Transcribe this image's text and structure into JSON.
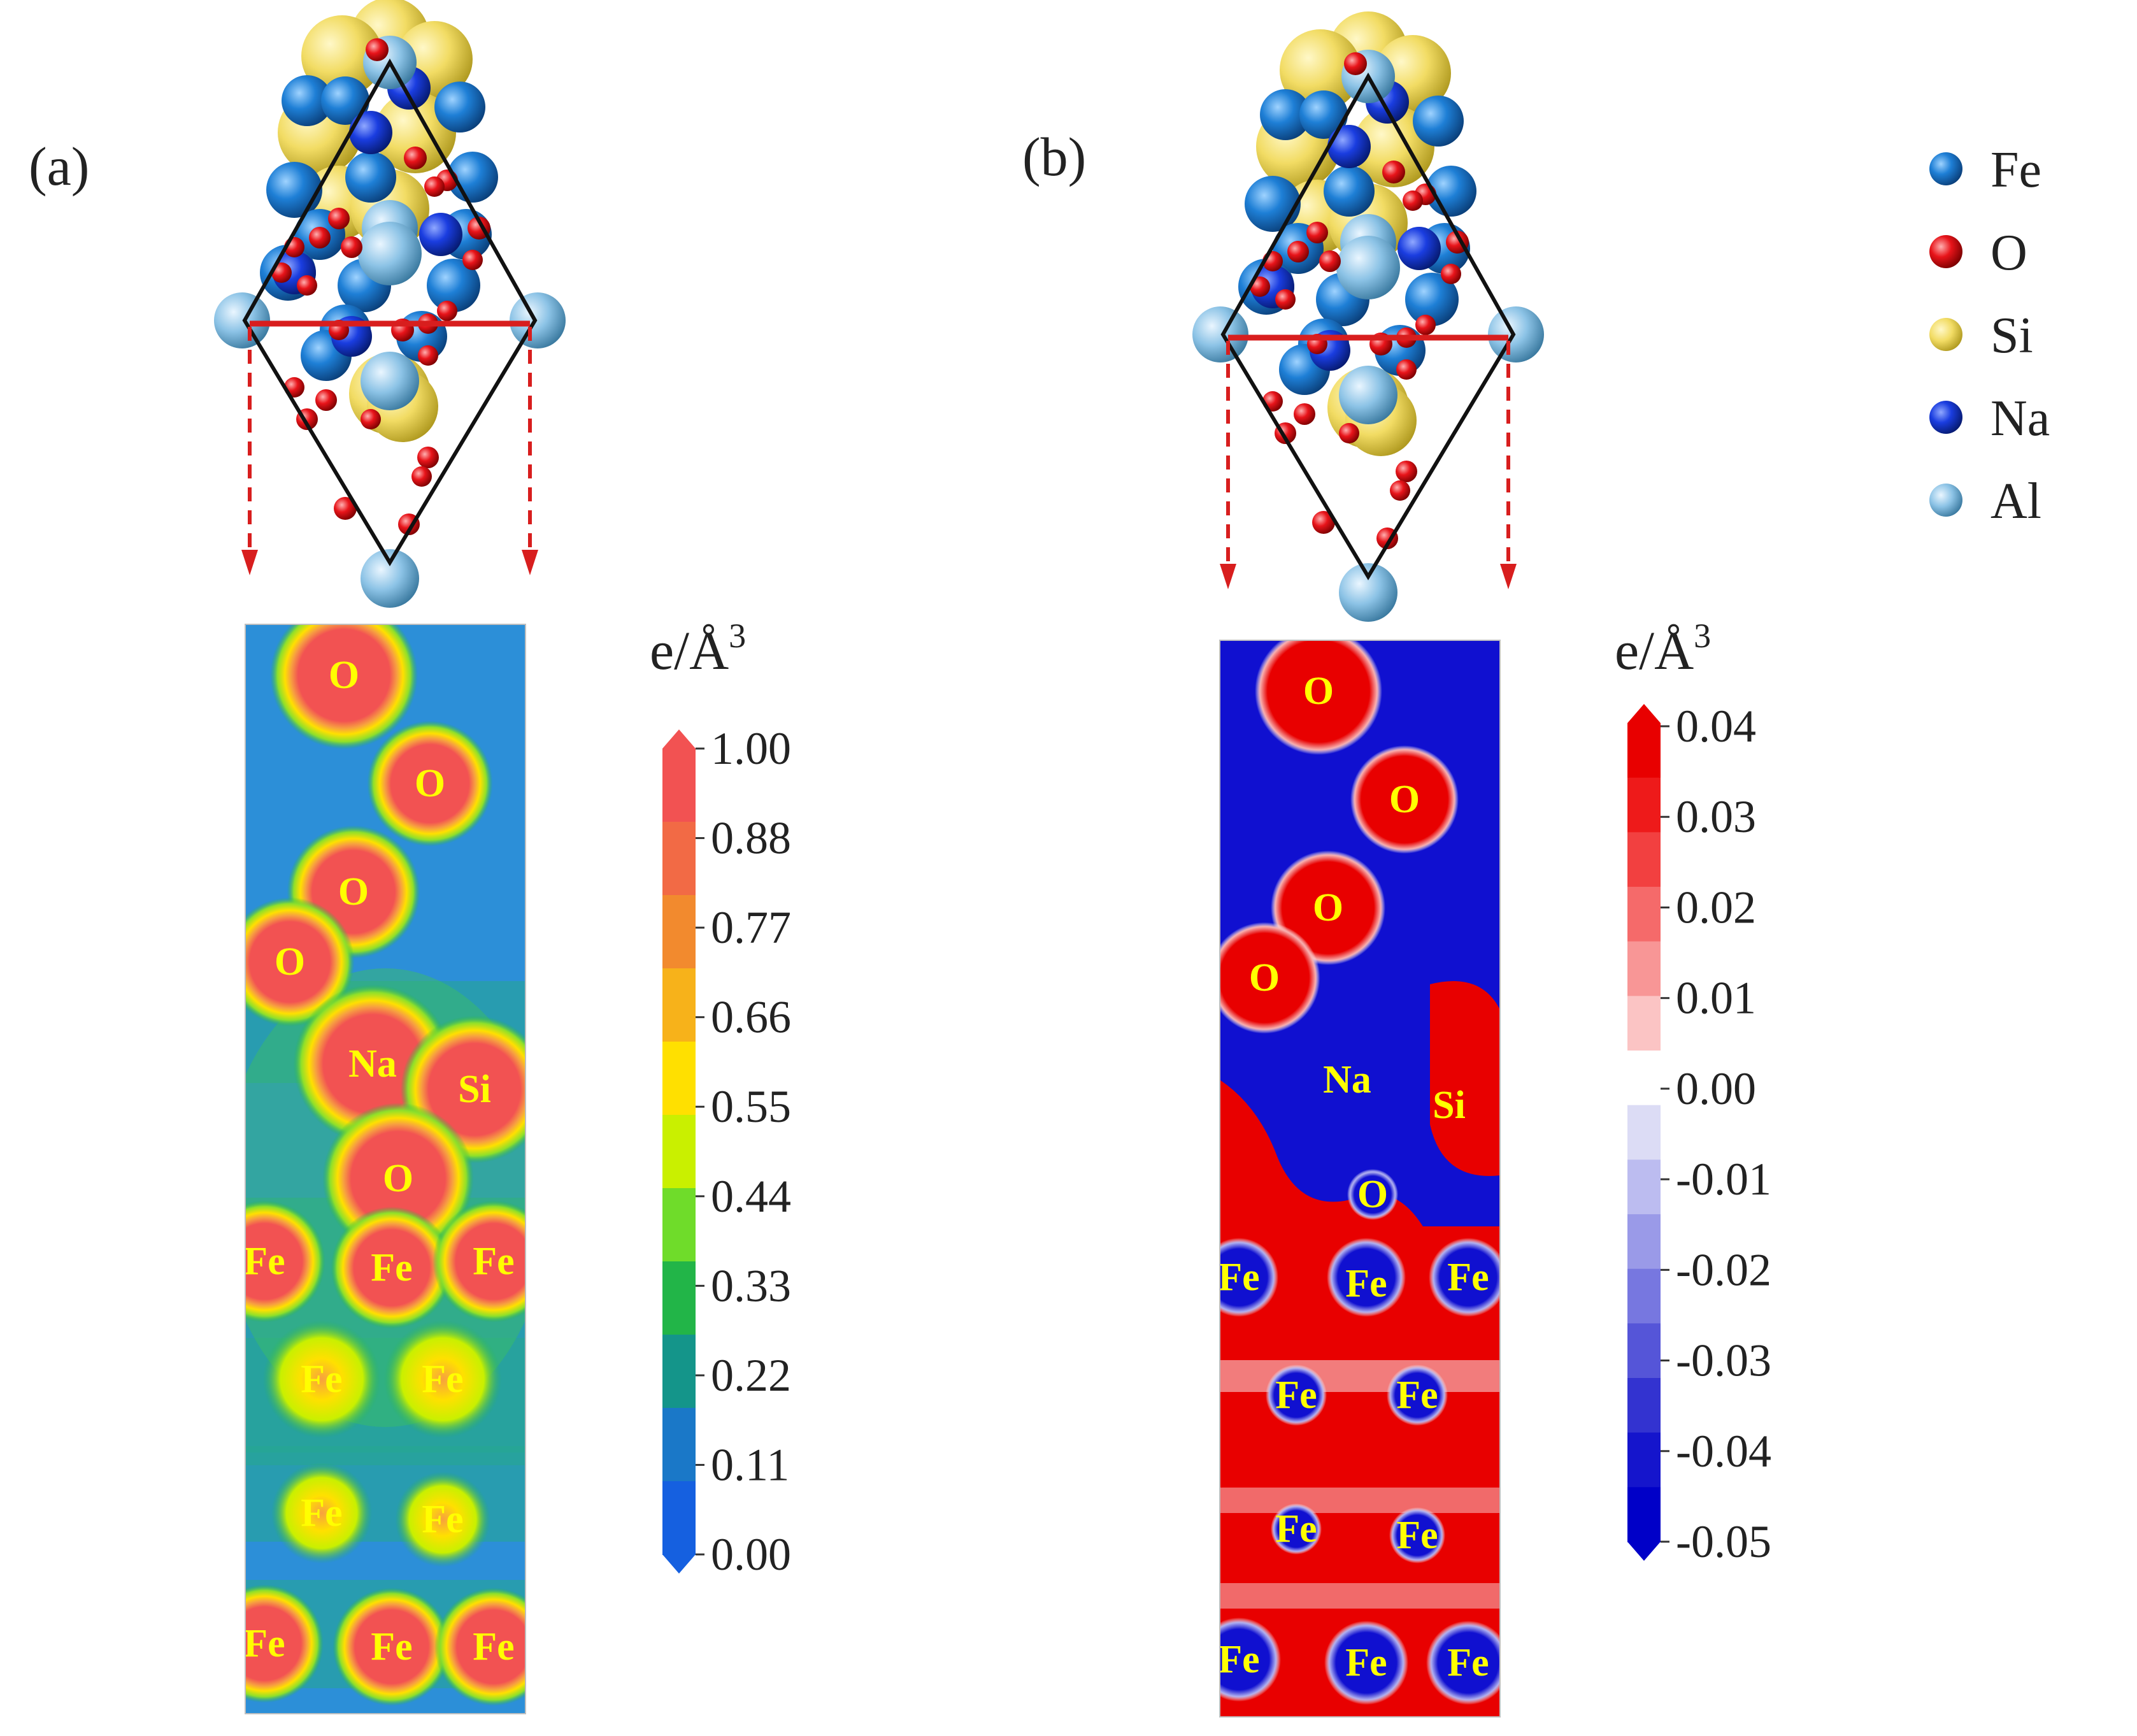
{
  "panels": [
    {
      "id": "a",
      "label": "(a)",
      "map_atom_labels": [
        "O",
        "O",
        "O",
        "O",
        "Na",
        "Si",
        "O",
        "Fe",
        "Fe",
        "Fe",
        "Fe",
        "Fe",
        "Fe",
        "Fe",
        "Fe",
        "Fe",
        "Fe"
      ],
      "colorbar": {
        "unit": "e/Å",
        "unit_superscript": "3",
        "ticks": [
          "1.00",
          "0.88",
          "0.77",
          "0.66",
          "0.55",
          "0.44",
          "0.33",
          "0.22",
          "0.11",
          "0.00"
        ],
        "colors": [
          "#f25252",
          "#f26a45",
          "#f28a2e",
          "#f7b21a",
          "#ffe000",
          "#c9f000",
          "#6fdc2a",
          "#22b548",
          "#14958a",
          "#1a78c8",
          "#1560e0"
        ]
      }
    },
    {
      "id": "b",
      "label": "(b)",
      "map_atom_labels": [
        "O",
        "O",
        "O",
        "O",
        "Na",
        "Si",
        "O",
        "Fe",
        "Fe",
        "Fe",
        "Fe",
        "Fe",
        "Fe",
        "Fe",
        "Fe",
        "Fe",
        "Fe"
      ],
      "colorbar": {
        "unit": "e/Å",
        "unit_superscript": "3",
        "ticks": [
          "0.04",
          "0.03",
          "0.02",
          "0.01",
          "0.00",
          "-0.01",
          "-0.02",
          "-0.03",
          "-0.04",
          "-0.05"
        ],
        "colors": [
          "#e80000",
          "#ee1a1a",
          "#f24040",
          "#f56a6a",
          "#f89696",
          "#fbc4c4",
          "#ffffff",
          "#dcdcf5",
          "#bcbcf0",
          "#9a9ae8",
          "#7777e0",
          "#5555d8",
          "#3333d0",
          "#1515cc",
          "#0000c8"
        ]
      }
    }
  ],
  "legend": [
    {
      "element": "Fe",
      "color": "#1e7fd6"
    },
    {
      "element": "O",
      "color": "#e8141a"
    },
    {
      "element": "Si",
      "color": "#f2dc64"
    },
    {
      "element": "Na",
      "color": "#1a3de0"
    },
    {
      "element": "Al",
      "color": "#8cc3e6"
    }
  ]
}
